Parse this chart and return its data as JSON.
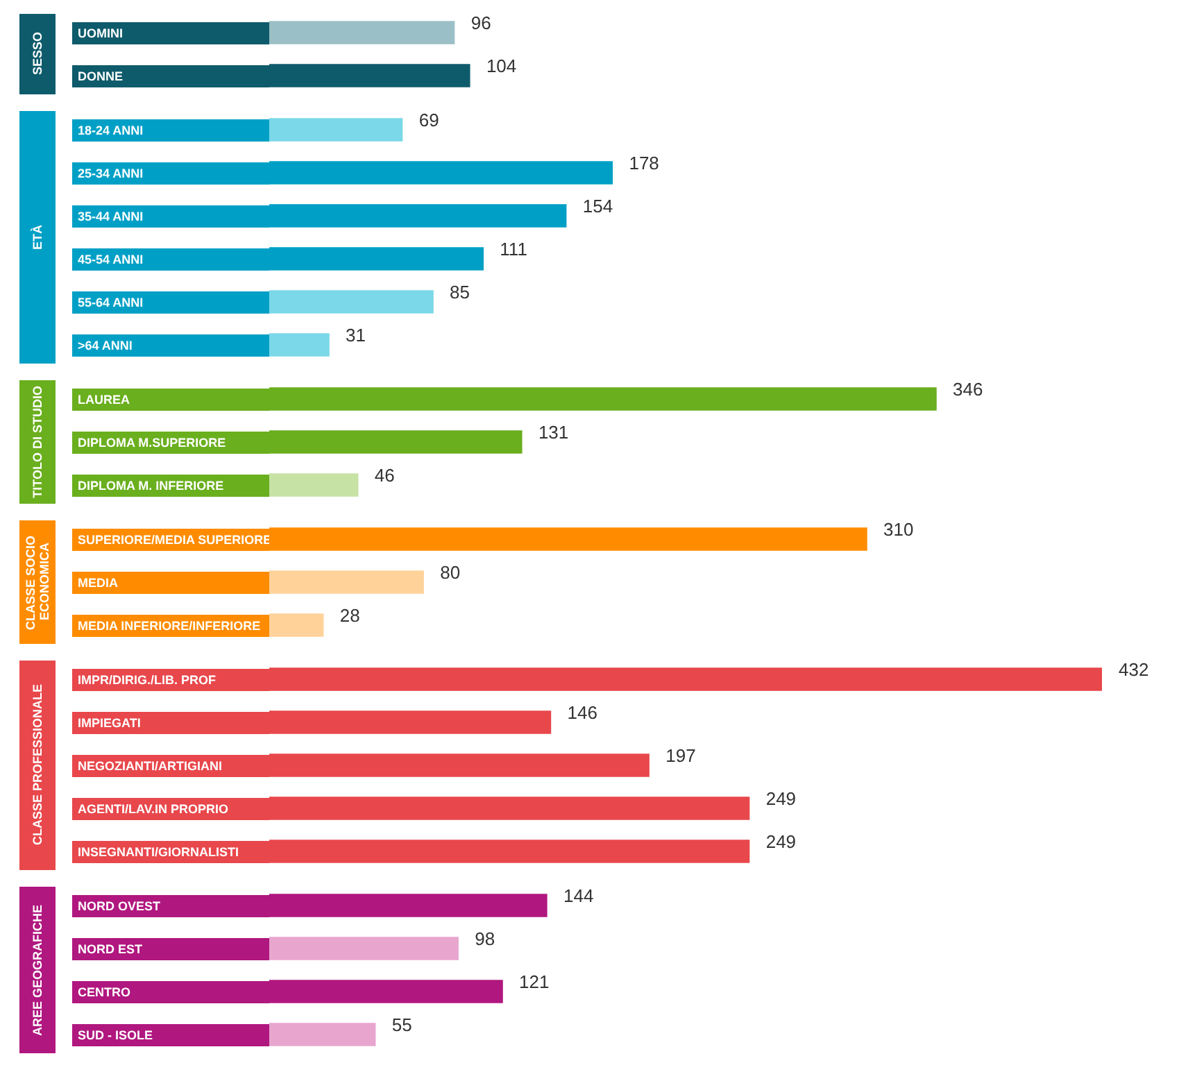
{
  "chart_data": [
    {
      "type": "bar",
      "orientation": "horizontal",
      "title": "SESSO",
      "categories": [
        "UOMINI",
        "DONNE"
      ],
      "values": [
        96,
        104
      ],
      "colors": [
        "#9bbfc6",
        "#0e5b6b"
      ],
      "data_labels": true
    },
    {
      "type": "bar",
      "orientation": "horizontal",
      "title": "ETÀ",
      "categories": [
        "18-24 ANNI",
        "25-34 ANNI",
        "35-44 ANNI",
        "45-54 ANNI",
        "55-64 ANNI",
        ">64 ANNI"
      ],
      "values": [
        69,
        178,
        154,
        111,
        85,
        31
      ],
      "colors": [
        "#7ad8e8",
        "#00a0c6",
        "#00a0c6",
        "#00a0c6",
        "#7ad8e8",
        "#7ad8e8"
      ],
      "data_labels": true
    },
    {
      "type": "bar",
      "orientation": "horizontal",
      "title": "TITOLO DI STUDIO",
      "categories": [
        "LAUREA",
        "DIPLOMA M.SUPERIORE",
        "DIPLOMA M. INFERIORE"
      ],
      "values": [
        346,
        131,
        46
      ],
      "colors": [
        "#6aaf1e",
        "#6aaf1e",
        "#c6e2a5"
      ],
      "data_labels": true
    },
    {
      "type": "bar",
      "orientation": "horizontal",
      "title": "CLASSE SOCIO ECONOMICA",
      "categories": [
        "SUPERIORE/MEDIA SUPERIORE",
        "MEDIA",
        "MEDIA INFERIORE/INFERIORE"
      ],
      "values": [
        310,
        80,
        28
      ],
      "colors": [
        "#ff8c00",
        "#ffd29a",
        "#ffd29a"
      ],
      "data_labels": true
    },
    {
      "type": "bar",
      "orientation": "horizontal",
      "title": "CLASSE PROFESSIONALE",
      "categories": [
        "IMPR/DIRIG./LIB. PROF",
        "IMPIEGATI",
        "NEGOZIANTI/ARTIGIANI",
        "AGENTI/LAV.IN PROPRIO",
        "INSEGNANTI/GIORNALISTI"
      ],
      "values": [
        432,
        146,
        197,
        249,
        249
      ],
      "colors": [
        "#e8474b",
        "#e8474b",
        "#e8474b",
        "#e8474b",
        "#e8474b"
      ],
      "data_labels": true
    },
    {
      "type": "bar",
      "orientation": "horizontal",
      "title": "AREE GEOGRAFICHE",
      "categories": [
        "NORD OVEST",
        "NORD EST",
        "CENTRO",
        "SUD - ISOLE"
      ],
      "values": [
        144,
        98,
        121,
        55
      ],
      "colors": [
        "#b0177f",
        "#e8a6cf",
        "#b0177f",
        "#e8a6cf"
      ],
      "data_labels": true
    }
  ]
}
